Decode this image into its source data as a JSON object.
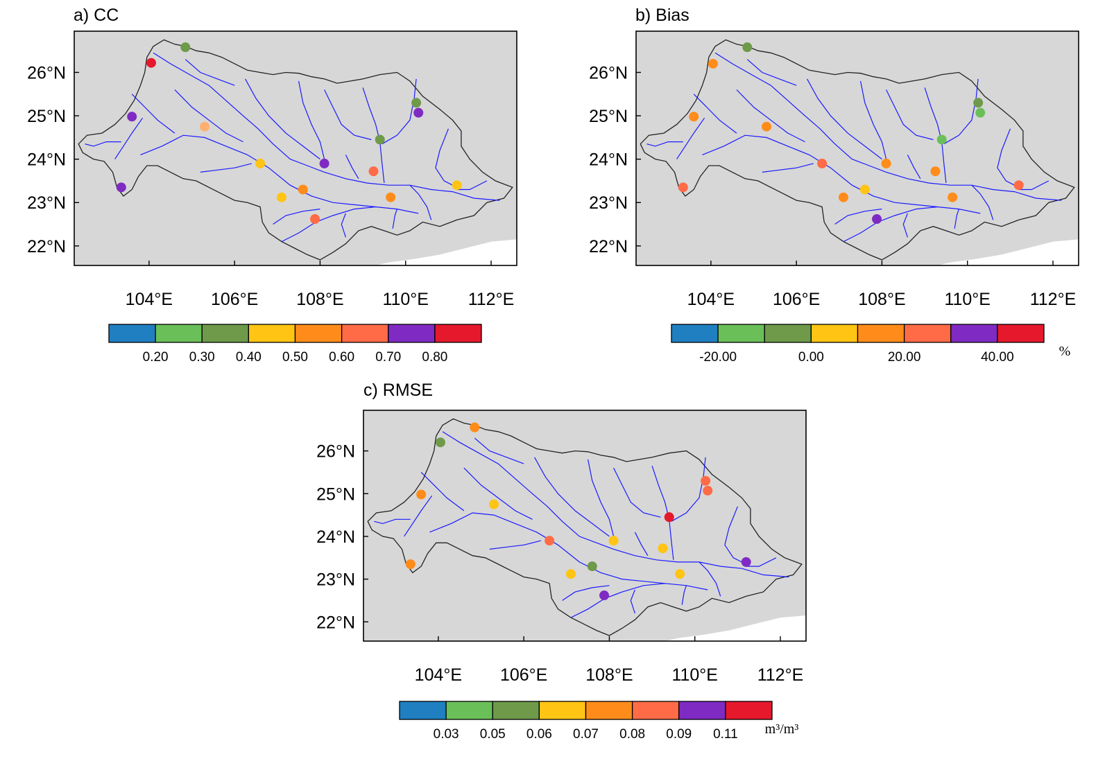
{
  "figure": {
    "panels": [
      {
        "title": "a) CC",
        "lat_ticks": [
          "26°N",
          "25°N",
          "24°N",
          "23°N",
          "22°N"
        ],
        "lon_ticks": [
          "104°E",
          "106°E",
          "108°E",
          "110°E",
          "112°E"
        ],
        "colorbar": {
          "colors": [
            "#1f7fc1",
            "#6bbf59",
            "#6e9a4a",
            "#ffc414",
            "#ff8c1a",
            "#ff6b47",
            "#7f2bc3",
            "#e5182c"
          ],
          "labels": [
            "0.20",
            "0.30",
            "0.40",
            "0.50",
            "0.60",
            "0.70",
            "0.80"
          ],
          "unit": ""
        },
        "stations": [
          {
            "lon": 104.05,
            "lat": 26.22,
            "color": "#e5182c"
          },
          {
            "lon": 104.85,
            "lat": 26.58,
            "color": "#6e9a4a"
          },
          {
            "lon": 103.6,
            "lat": 24.98,
            "color": "#7f2bc3"
          },
          {
            "lon": 105.3,
            "lat": 24.75,
            "color": "#ffb070"
          },
          {
            "lon": 106.6,
            "lat": 23.9,
            "color": "#ffc414"
          },
          {
            "lon": 107.1,
            "lat": 23.12,
            "color": "#ffc414"
          },
          {
            "lon": 107.6,
            "lat": 23.3,
            "color": "#ff8c1a"
          },
          {
            "lon": 108.1,
            "lat": 23.9,
            "color": "#7f2bc3"
          },
          {
            "lon": 107.88,
            "lat": 22.62,
            "color": "#ff6b47"
          },
          {
            "lon": 109.25,
            "lat": 23.72,
            "color": "#ff6b47"
          },
          {
            "lon": 109.4,
            "lat": 24.45,
            "color": "#6e9a4a"
          },
          {
            "lon": 109.65,
            "lat": 23.12,
            "color": "#ff8c1a"
          },
          {
            "lon": 110.25,
            "lat": 25.3,
            "color": "#6e9a4a"
          },
          {
            "lon": 110.3,
            "lat": 25.07,
            "color": "#7f2bc3"
          },
          {
            "lon": 111.2,
            "lat": 23.4,
            "color": "#ffc414"
          },
          {
            "lon": 103.35,
            "lat": 23.35,
            "color": "#7f2bc3"
          }
        ]
      },
      {
        "title": "b) Bias",
        "lat_ticks": [
          "26°N",
          "25°N",
          "24°N",
          "23°N",
          "22°N"
        ],
        "lon_ticks": [
          "104°E",
          "106°E",
          "108°E",
          "110°E",
          "112°E"
        ],
        "colorbar": {
          "colors": [
            "#1f7fc1",
            "#6bbf59",
            "#6e9a4a",
            "#ffc414",
            "#ff8c1a",
            "#ff6b47",
            "#7f2bc3",
            "#e5182c"
          ],
          "labels": [
            "-20.00",
            "0.00",
            "20.00",
            "40.00"
          ],
          "unit": "%"
        },
        "stations": [
          {
            "lon": 104.05,
            "lat": 26.2,
            "color": "#ff8c1a"
          },
          {
            "lon": 104.85,
            "lat": 26.58,
            "color": "#6e9a4a"
          },
          {
            "lon": 103.6,
            "lat": 24.98,
            "color": "#ff8c1a"
          },
          {
            "lon": 105.3,
            "lat": 24.75,
            "color": "#ff8c1a"
          },
          {
            "lon": 106.6,
            "lat": 23.9,
            "color": "#ff6b47"
          },
          {
            "lon": 107.1,
            "lat": 23.12,
            "color": "#ff8c1a"
          },
          {
            "lon": 107.6,
            "lat": 23.3,
            "color": "#ffc414"
          },
          {
            "lon": 108.1,
            "lat": 23.9,
            "color": "#ff8c1a"
          },
          {
            "lon": 107.88,
            "lat": 22.62,
            "color": "#7f2bc3"
          },
          {
            "lon": 109.25,
            "lat": 23.72,
            "color": "#ff8c1a"
          },
          {
            "lon": 109.4,
            "lat": 24.45,
            "color": "#6bbf59"
          },
          {
            "lon": 109.65,
            "lat": 23.12,
            "color": "#ff8c1a"
          },
          {
            "lon": 110.25,
            "lat": 25.3,
            "color": "#6e9a4a"
          },
          {
            "lon": 110.3,
            "lat": 25.07,
            "color": "#6bbf59"
          },
          {
            "lon": 111.2,
            "lat": 23.4,
            "color": "#ff6b47"
          },
          {
            "lon": 103.35,
            "lat": 23.35,
            "color": "#ff6b47"
          }
        ]
      },
      {
        "title": "c) RMSE",
        "lat_ticks": [
          "26°N",
          "25°N",
          "24°N",
          "23°N",
          "22°N"
        ],
        "lon_ticks": [
          "104°E",
          "106°E",
          "108°E",
          "110°E",
          "112°E"
        ],
        "colorbar": {
          "colors": [
            "#1f7fc1",
            "#6bbf59",
            "#6e9a4a",
            "#ffc414",
            "#ff8c1a",
            "#ff6b47",
            "#7f2bc3",
            "#e5182c"
          ],
          "labels": [
            "0.03",
            "0.05",
            "0.06",
            "0.07",
            "0.08",
            "0.09",
            "0.11"
          ],
          "unit": "m³/m³"
        },
        "stations": [
          {
            "lon": 104.05,
            "lat": 26.2,
            "color": "#6e9a4a"
          },
          {
            "lon": 104.85,
            "lat": 26.55,
            "color": "#ff8c1a"
          },
          {
            "lon": 103.6,
            "lat": 24.98,
            "color": "#ff8c1a"
          },
          {
            "lon": 105.3,
            "lat": 24.75,
            "color": "#ffc414"
          },
          {
            "lon": 106.6,
            "lat": 23.9,
            "color": "#ff6b47"
          },
          {
            "lon": 107.1,
            "lat": 23.12,
            "color": "#ffc414"
          },
          {
            "lon": 107.6,
            "lat": 23.3,
            "color": "#6e9a4a"
          },
          {
            "lon": 108.1,
            "lat": 23.9,
            "color": "#ffc414"
          },
          {
            "lon": 107.88,
            "lat": 22.62,
            "color": "#7f2bc3"
          },
          {
            "lon": 109.25,
            "lat": 23.72,
            "color": "#ffc414"
          },
          {
            "lon": 109.4,
            "lat": 24.45,
            "color": "#e5182c"
          },
          {
            "lon": 109.65,
            "lat": 23.12,
            "color": "#ffc414"
          },
          {
            "lon": 110.25,
            "lat": 25.3,
            "color": "#ff6b47"
          },
          {
            "lon": 110.3,
            "lat": 25.07,
            "color": "#ff6b47"
          },
          {
            "lon": 111.2,
            "lat": 23.4,
            "color": "#7f2bc3"
          },
          {
            "lon": 103.35,
            "lat": 23.35,
            "color": "#ff8c1a"
          }
        ]
      }
    ],
    "colors": {
      "land": "#d7d7d7",
      "sea": "#ffffff",
      "river": "#1a1aff",
      "boundary": "#222222"
    }
  }
}
